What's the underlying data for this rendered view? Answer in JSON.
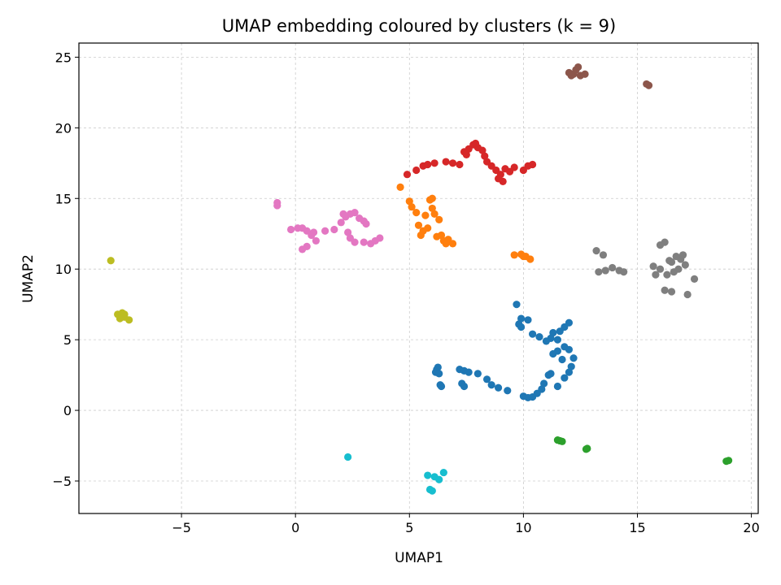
{
  "chart_data": {
    "type": "scatter",
    "title": "UMAP embedding coloured by clusters (k = 9)",
    "xlabel": "UMAP1",
    "ylabel": "UMAP2",
    "xlim": [
      -9.5,
      20.3
    ],
    "ylim": [
      -7.3,
      26.0
    ],
    "xticks": [
      -5,
      0,
      5,
      10,
      15,
      20
    ],
    "yticks": [
      -5,
      0,
      5,
      10,
      15,
      20,
      25
    ],
    "xtick_labels": [
      "−5",
      "0",
      "5",
      "10",
      "15",
      "20"
    ],
    "ytick_labels": [
      "−5",
      "0",
      "5",
      "10",
      "15",
      "20",
      "25"
    ],
    "grid": true,
    "legend": "none",
    "series": [
      {
        "color": "#1f77b4",
        "points": [
          [
            6.2,
            2.9
          ],
          [
            6.25,
            3.05
          ],
          [
            6.15,
            2.7
          ],
          [
            6.3,
            2.6
          ],
          [
            6.35,
            1.8
          ],
          [
            6.4,
            1.7
          ],
          [
            7.2,
            2.9
          ],
          [
            7.4,
            2.8
          ],
          [
            7.6,
            2.7
          ],
          [
            7.3,
            1.9
          ],
          [
            7.4,
            1.7
          ],
          [
            8.0,
            2.6
          ],
          [
            8.4,
            2.2
          ],
          [
            8.6,
            1.8
          ],
          [
            8.9,
            1.6
          ],
          [
            9.3,
            1.4
          ],
          [
            10.0,
            1.0
          ],
          [
            10.2,
            0.9
          ],
          [
            10.4,
            0.95
          ],
          [
            10.6,
            1.2
          ],
          [
            10.8,
            1.5
          ],
          [
            10.9,
            1.9
          ],
          [
            11.1,
            2.5
          ],
          [
            11.2,
            2.6
          ],
          [
            11.5,
            1.7
          ],
          [
            11.8,
            2.3
          ],
          [
            12.0,
            2.7
          ],
          [
            12.1,
            3.1
          ],
          [
            12.2,
            3.7
          ],
          [
            12.0,
            4.3
          ],
          [
            11.8,
            4.5
          ],
          [
            11.5,
            4.2
          ],
          [
            11.3,
            4.0
          ],
          [
            11.7,
            3.6
          ],
          [
            11.2,
            5.1
          ],
          [
            11.3,
            5.5
          ],
          [
            11.6,
            5.6
          ],
          [
            11.8,
            5.9
          ],
          [
            12.0,
            6.2
          ],
          [
            11.5,
            5.0
          ],
          [
            11.0,
            4.9
          ],
          [
            10.7,
            5.2
          ],
          [
            10.4,
            5.4
          ],
          [
            9.9,
            5.9
          ],
          [
            9.9,
            6.5
          ],
          [
            10.2,
            6.4
          ],
          [
            9.7,
            7.5
          ],
          [
            9.8,
            6.1
          ]
        ]
      },
      {
        "color": "#ff7f0e",
        "points": [
          [
            4.6,
            15.8
          ],
          [
            5.0,
            14.8
          ],
          [
            5.1,
            14.4
          ],
          [
            5.3,
            14.0
          ],
          [
            5.7,
            13.8
          ],
          [
            6.1,
            13.9
          ],
          [
            6.0,
            14.3
          ],
          [
            5.9,
            14.9
          ],
          [
            6.0,
            15.0
          ],
          [
            6.3,
            13.5
          ],
          [
            5.4,
            13.1
          ],
          [
            5.8,
            12.9
          ],
          [
            5.5,
            12.4
          ],
          [
            5.6,
            12.7
          ],
          [
            6.2,
            12.3
          ],
          [
            6.5,
            12.0
          ],
          [
            6.7,
            12.1
          ],
          [
            6.9,
            11.8
          ],
          [
            6.4,
            12.4
          ],
          [
            6.6,
            11.8
          ],
          [
            9.6,
            11.0
          ],
          [
            9.9,
            11.05
          ],
          [
            10.1,
            10.9
          ],
          [
            10.3,
            10.7
          ],
          [
            10.0,
            10.9
          ]
        ]
      },
      {
        "color": "#2ca02c",
        "points": [
          [
            11.5,
            -2.1
          ],
          [
            11.7,
            -2.2
          ],
          [
            11.6,
            -2.15
          ],
          [
            12.8,
            -2.7
          ],
          [
            12.75,
            -2.75
          ],
          [
            18.9,
            -3.6
          ],
          [
            19.0,
            -3.55
          ]
        ]
      },
      {
        "color": "#d62728",
        "points": [
          [
            4.9,
            16.7
          ],
          [
            5.3,
            17.0
          ],
          [
            5.6,
            17.3
          ],
          [
            5.8,
            17.4
          ],
          [
            6.1,
            17.5
          ],
          [
            6.6,
            17.6
          ],
          [
            6.9,
            17.5
          ],
          [
            7.2,
            17.4
          ],
          [
            7.4,
            18.3
          ],
          [
            7.6,
            18.5
          ],
          [
            7.8,
            18.8
          ],
          [
            8.0,
            18.6
          ],
          [
            8.2,
            18.4
          ],
          [
            8.3,
            18.0
          ],
          [
            8.4,
            17.6
          ],
          [
            8.6,
            17.3
          ],
          [
            8.8,
            17.0
          ],
          [
            9.0,
            16.7
          ],
          [
            9.2,
            17.1
          ],
          [
            9.4,
            16.9
          ],
          [
            9.6,
            17.2
          ],
          [
            9.1,
            16.2
          ],
          [
            8.9,
            16.4
          ],
          [
            10.0,
            17.0
          ],
          [
            10.2,
            17.3
          ],
          [
            10.4,
            17.4
          ],
          [
            7.9,
            18.9
          ],
          [
            7.5,
            18.1
          ]
        ]
      },
      {
        "color": "#9467bd",
        "points": []
      },
      {
        "color": "#8c564b",
        "points": [
          [
            12.0,
            23.9
          ],
          [
            12.2,
            23.8
          ],
          [
            12.4,
            24.3
          ],
          [
            12.5,
            23.7
          ],
          [
            12.7,
            23.8
          ],
          [
            12.3,
            24.1
          ],
          [
            12.1,
            23.7
          ],
          [
            15.4,
            23.1
          ],
          [
            15.5,
            23.0
          ]
        ]
      },
      {
        "color": "#e377c2",
        "points": [
          [
            -0.8,
            14.7
          ],
          [
            -0.8,
            14.5
          ],
          [
            -0.2,
            12.8
          ],
          [
            0.1,
            12.9
          ],
          [
            0.3,
            12.9
          ],
          [
            0.5,
            12.7
          ],
          [
            0.7,
            12.4
          ],
          [
            0.8,
            12.6
          ],
          [
            0.9,
            12.0
          ],
          [
            0.5,
            11.6
          ],
          [
            0.3,
            11.4
          ],
          [
            1.3,
            12.7
          ],
          [
            1.7,
            12.8
          ],
          [
            2.0,
            13.3
          ],
          [
            2.2,
            13.7
          ],
          [
            2.4,
            13.9
          ],
          [
            2.6,
            14.0
          ],
          [
            2.8,
            13.6
          ],
          [
            3.1,
            13.2
          ],
          [
            3.0,
            13.4
          ],
          [
            2.3,
            12.6
          ],
          [
            2.4,
            12.2
          ],
          [
            2.6,
            11.9
          ],
          [
            3.0,
            11.9
          ],
          [
            3.3,
            11.8
          ],
          [
            3.5,
            12.0
          ],
          [
            3.7,
            12.2
          ],
          [
            2.1,
            13.9
          ]
        ]
      },
      {
        "color": "#7f7f7f",
        "points": [
          [
            13.2,
            11.3
          ],
          [
            13.5,
            11.0
          ],
          [
            13.3,
            9.8
          ],
          [
            13.6,
            9.9
          ],
          [
            13.9,
            10.1
          ],
          [
            14.2,
            9.9
          ],
          [
            14.4,
            9.8
          ],
          [
            15.7,
            10.2
          ],
          [
            16.0,
            11.7
          ],
          [
            16.2,
            11.9
          ],
          [
            16.5,
            10.5
          ],
          [
            16.7,
            10.9
          ],
          [
            16.9,
            10.7
          ],
          [
            17.0,
            11.0
          ],
          [
            17.1,
            10.3
          ],
          [
            16.3,
            9.6
          ],
          [
            16.6,
            9.8
          ],
          [
            16.0,
            10.0
          ],
          [
            16.2,
            8.5
          ],
          [
            16.5,
            8.4
          ],
          [
            17.2,
            8.2
          ],
          [
            17.5,
            9.3
          ],
          [
            16.8,
            10.0
          ],
          [
            15.8,
            9.6
          ],
          [
            16.4,
            10.6
          ]
        ]
      },
      {
        "color": "#bcbd22",
        "points": [
          [
            -8.1,
            10.6
          ],
          [
            -7.8,
            6.8
          ],
          [
            -7.6,
            6.9
          ],
          [
            -7.5,
            6.6
          ],
          [
            -7.7,
            6.5
          ],
          [
            -7.3,
            6.4
          ],
          [
            -7.5,
            6.8
          ]
        ]
      },
      {
        "color": "#17becf",
        "points": [
          [
            2.3,
            -3.3
          ],
          [
            5.8,
            -4.6
          ],
          [
            6.1,
            -4.7
          ],
          [
            6.3,
            -4.9
          ],
          [
            6.5,
            -4.4
          ],
          [
            6.0,
            -5.7
          ],
          [
            5.9,
            -5.6
          ]
        ]
      }
    ]
  }
}
